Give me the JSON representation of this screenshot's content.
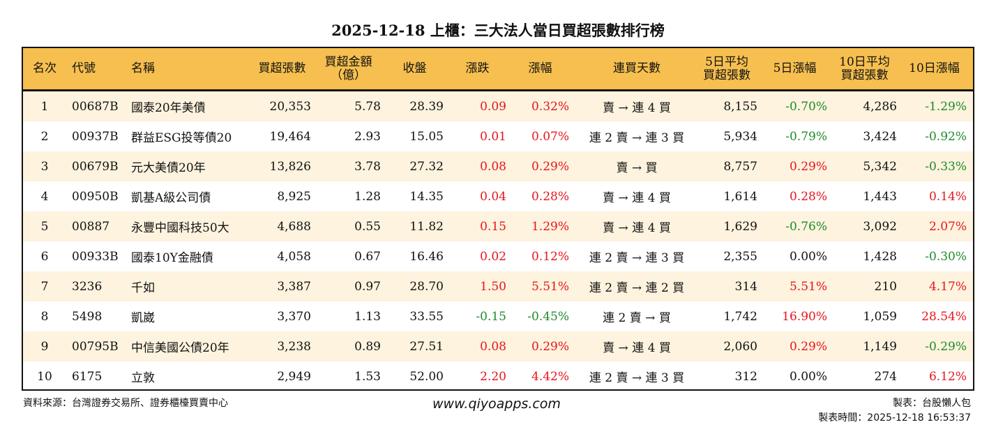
{
  "title": "2025-12-18 上櫃：三大法人當日買超張數排行榜",
  "colors": {
    "header_bg": "#f6bf4f",
    "up": "#e8141c",
    "down": "#1e8a2a",
    "flat": "#111111"
  },
  "headers": [
    "名次",
    "代號",
    "名稱",
    "買超張數",
    "買超金額\n（億）",
    "收盤",
    "漲跌",
    "漲幅",
    "連買天數",
    "5日平均\n買超張數",
    "5日漲幅",
    "10日平均\n買超張數",
    "10日漲幅"
  ],
  "rows": [
    [
      "1",
      "00687B",
      "國泰20年美債",
      "20,353",
      "5.78",
      "28.39",
      "0.09",
      "0.32%",
      "賣 → 連 4 買",
      "8,155",
      "-0.70%",
      "4,286",
      "-1.29%"
    ],
    [
      "2",
      "00937B",
      "群益ESG投等債20",
      "19,464",
      "2.93",
      "15.05",
      "0.01",
      "0.07%",
      "連 2 賣 → 連 3 買",
      "5,934",
      "-0.79%",
      "3,424",
      "-0.92%"
    ],
    [
      "3",
      "00679B",
      "元大美債20年",
      "13,826",
      "3.78",
      "27.32",
      "0.08",
      "0.29%",
      "賣 → 買",
      "8,757",
      "0.29%",
      "5,342",
      "-0.33%"
    ],
    [
      "4",
      "00950B",
      "凱基A級公司債",
      "8,925",
      "1.28",
      "14.35",
      "0.04",
      "0.28%",
      "賣 → 連 4 買",
      "1,614",
      "0.28%",
      "1,443",
      "0.14%"
    ],
    [
      "5",
      "00887",
      "永豐中國科技50大",
      "4,688",
      "0.55",
      "11.82",
      "0.15",
      "1.29%",
      "賣 → 連 4 買",
      "1,629",
      "-0.76%",
      "3,092",
      "2.07%"
    ],
    [
      "6",
      "00933B",
      "國泰10Y金融債",
      "4,058",
      "0.67",
      "16.46",
      "0.02",
      "0.12%",
      "連 2 賣 → 連 3 買",
      "2,355",
      "0.00%",
      "1,428",
      "-0.30%"
    ],
    [
      "7",
      "3236",
      "千如",
      "3,387",
      "0.97",
      "28.70",
      "1.50",
      "5.51%",
      "連 2 賣 → 連 2 買",
      "314",
      "5.51%",
      "210",
      "4.17%"
    ],
    [
      "8",
      "5498",
      "凱崴",
      "3,370",
      "1.13",
      "33.55",
      "-0.15",
      "-0.45%",
      "連 2 賣 → 買",
      "1,742",
      "16.90%",
      "1,059",
      "28.54%"
    ],
    [
      "9",
      "00795B",
      "中信美國公債20年",
      "3,238",
      "0.89",
      "27.51",
      "0.08",
      "0.29%",
      "賣 → 連 4 買",
      "2,060",
      "0.29%",
      "1,149",
      "-0.29%"
    ],
    [
      "10",
      "6175",
      "立敦",
      "2,949",
      "1.53",
      "52.00",
      "2.20",
      "4.42%",
      "連 2 賣 → 連 3 買",
      "312",
      "0.00%",
      "274",
      "6.12%"
    ]
  ],
  "footer": {
    "source": "資料來源：台灣證券交易所、證券櫃檯買賣中心",
    "website": "www.qiyoapps.com",
    "author": "製表：台股懶人包",
    "time": "製表時間：2025-12-18 16:53:37"
  }
}
